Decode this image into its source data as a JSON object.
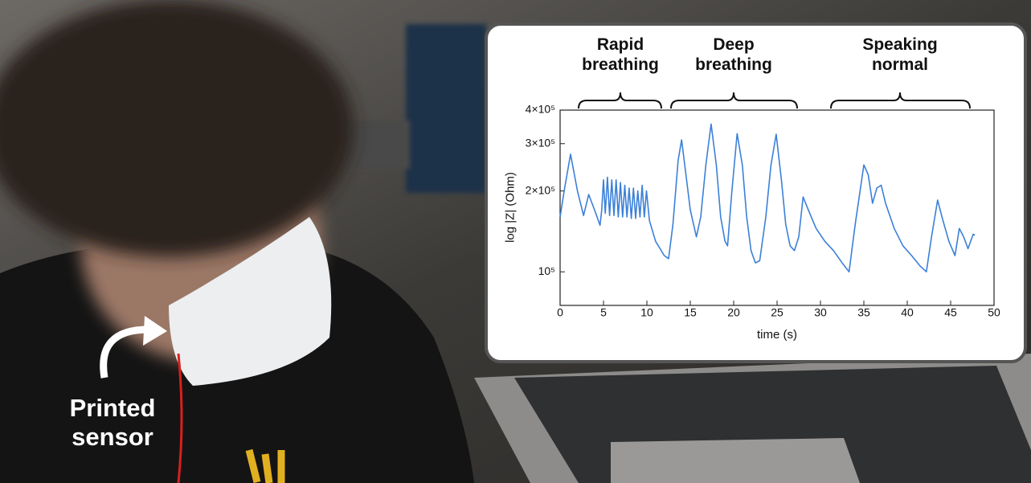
{
  "photo_label": "Printed sensor",
  "chart_data": {
    "type": "line",
    "annotations": [
      "Rapid breathing",
      "Deep breathing",
      "Speaking normal"
    ],
    "xlabel": "time (s)",
    "ylabel": "log |Z| (Ohm)",
    "x": [
      0,
      0.5,
      1.2,
      2,
      2.7,
      3.3,
      4,
      4.6,
      4.8,
      5.0,
      5.2,
      5.45,
      5.7,
      5.95,
      6.2,
      6.45,
      6.7,
      6.95,
      7.2,
      7.45,
      7.7,
      7.95,
      8.2,
      8.45,
      8.7,
      8.95,
      9.2,
      9.45,
      9.7,
      9.95,
      10.3,
      11,
      12,
      12.5,
      13,
      13.6,
      14,
      14.5,
      15,
      15.7,
      16.2,
      16.8,
      17.4,
      18,
      18.5,
      19,
      19.3,
      19.8,
      20.4,
      21,
      21.5,
      22,
      22.5,
      23,
      23.7,
      24.3,
      24.9,
      25.5,
      26,
      26.5,
      27,
      27.5,
      28,
      28.6,
      29.5,
      30.5,
      31.5,
      32.5,
      33.3,
      34,
      35,
      35.5,
      36,
      36.5,
      37,
      37.5,
      38.5,
      39.5,
      40.5,
      41.5,
      42.2,
      42.8,
      43.5,
      44,
      44.8,
      45.5,
      46,
      46.5,
      47,
      47.6,
      47.8
    ],
    "series": [
      {
        "color": "#3b80d8",
        "values": [
          160000,
          203000,
          274000,
          200000,
          162000,
          194000,
          169000,
          149000,
          170000,
          220000,
          165000,
          225000,
          162000,
          220000,
          162000,
          220000,
          160000,
          215000,
          160000,
          210000,
          160000,
          205000,
          158000,
          205000,
          158000,
          200000,
          160000,
          210000,
          160000,
          200000,
          155000,
          130000,
          115000,
          112000,
          150000,
          260000,
          310000,
          230000,
          170000,
          135000,
          160000,
          250000,
          355000,
          250000,
          160000,
          130000,
          125000,
          200000,
          327000,
          250000,
          160000,
          120000,
          108000,
          110000,
          160000,
          250000,
          325000,
          220000,
          150000,
          125000,
          120000,
          135000,
          190000,
          170000,
          145000,
          130000,
          120000,
          108000,
          100000,
          150000,
          250000,
          230000,
          180000,
          205000,
          210000,
          180000,
          145000,
          125000,
          115000,
          105000,
          100000,
          135000,
          185000,
          160000,
          130000,
          115000,
          145000,
          135000,
          122000,
          138000,
          137000
        ]
      }
    ],
    "xlim": [
      0,
      50
    ],
    "xticks": [
      0,
      5,
      10,
      15,
      20,
      25,
      30,
      35,
      40,
      45,
      50
    ],
    "ylim": [
      75000,
      400000
    ],
    "log_y": true,
    "yticks": [
      {
        "value": 100000,
        "label": "10⁵"
      },
      {
        "value": 200000,
        "label": "2×10⁵"
      },
      {
        "value": 300000,
        "label": "3×10⁵"
      },
      {
        "value": 400000,
        "label": "4×10⁵"
      }
    ]
  }
}
